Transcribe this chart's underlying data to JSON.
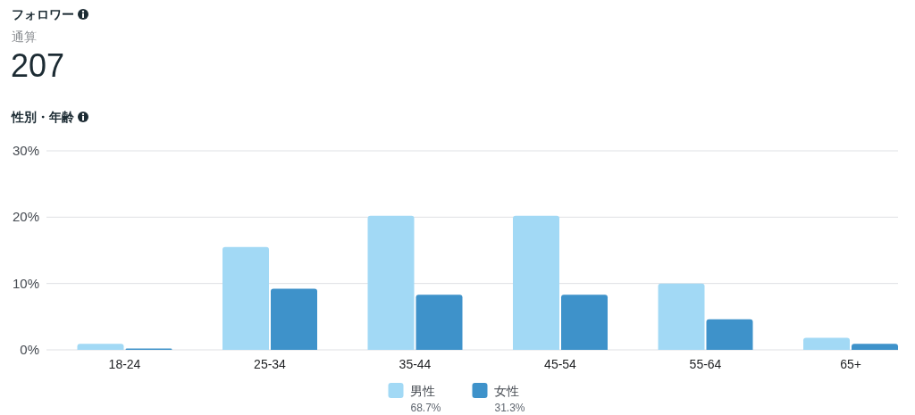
{
  "chart_data": [
    {
      "type": "other",
      "title": "フォロワー",
      "subtitle": "通算",
      "annotations": [
        "207"
      ]
    },
    {
      "type": "bar",
      "title": "性別・年齢",
      "categories": [
        "18-24",
        "25-34",
        "35-44",
        "45-54",
        "55-64",
        "65+"
      ],
      "series": [
        {
          "name": "男性",
          "color": "#a2d9f5",
          "values": [
            0.9,
            15.5,
            20.2,
            20.2,
            10.0,
            1.8
          ]
        },
        {
          "name": "女性",
          "color": "#3e92ca",
          "values": [
            0.2,
            9.2,
            8.3,
            8.3,
            4.6,
            0.9
          ]
        }
      ],
      "ylim": [
        0,
        30
      ],
      "yticks": [
        {
          "value": 0,
          "label": "0%"
        },
        {
          "value": 10,
          "label": "10%"
        },
        {
          "value": 20,
          "label": "20%"
        },
        {
          "value": 30,
          "label": "30%"
        }
      ],
      "grid": "y",
      "legend": "bottom",
      "annotations": [
        "68.7%",
        "31.3%"
      ]
    }
  ]
}
